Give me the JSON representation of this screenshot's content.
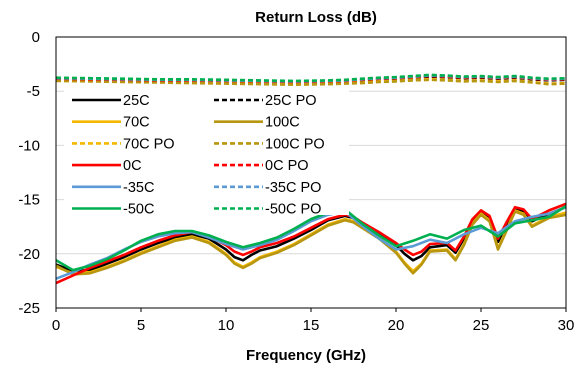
{
  "chart_data": {
    "type": "line",
    "title": "Return Loss (dB)",
    "xlabel": "Frequency  (GHz)",
    "ylabel": "",
    "xlim": [
      0,
      30
    ],
    "ylim": [
      -25,
      0
    ],
    "x_ticks": [
      0,
      5,
      10,
      15,
      20,
      25,
      30
    ],
    "y_ticks": [
      0,
      -5,
      -10,
      -15,
      -20,
      -25
    ],
    "x_tick_labels": [
      "0",
      "5",
      "10",
      "15",
      "20",
      "25",
      "30"
    ],
    "y_tick_labels": [
      "0",
      "-5",
      "-10",
      "-15",
      "-20",
      "-25"
    ],
    "grid": "horizontal",
    "legend_placement": "upper-left, inside plot, two columns",
    "series": [
      {
        "name": "25C",
        "color": "#000000",
        "dash": "solid",
        "x": [
          0,
          1,
          2,
          3,
          4,
          5,
          6,
          7,
          8,
          9,
          10,
          10.5,
          11,
          11.5,
          12,
          13,
          14,
          15,
          16,
          17,
          17.5,
          18,
          19,
          20,
          20.5,
          21,
          21.5,
          22,
          23,
          23.5,
          24,
          24.5,
          25,
          25.5,
          26,
          26.5,
          27,
          27.5,
          28,
          29,
          30
        ],
        "y": [
          -21.0,
          -21.6,
          -21.5,
          -20.9,
          -20.3,
          -19.6,
          -19.0,
          -18.5,
          -18.2,
          -18.6,
          -19.6,
          -20.3,
          -20.6,
          -20.1,
          -19.7,
          -19.3,
          -18.6,
          -17.8,
          -16.9,
          -16.5,
          -16.7,
          -17.2,
          -18.2,
          -19.2,
          -20.0,
          -20.6,
          -20.2,
          -19.4,
          -19.2,
          -19.9,
          -18.6,
          -16.9,
          -16.1,
          -16.7,
          -18.9,
          -17.3,
          -15.8,
          -16.1,
          -17.0,
          -16.3,
          -15.7
        ]
      },
      {
        "name": "25C PO",
        "color": "#000000",
        "dash": "dashed",
        "x": [
          0,
          2,
          4,
          6,
          8,
          10,
          12,
          14,
          16,
          17,
          18,
          19,
          20,
          21,
          22,
          23,
          24,
          25,
          26,
          27,
          28,
          29,
          30
        ],
        "y": [
          -3.9,
          -3.95,
          -4.0,
          -4.05,
          -4.05,
          -4.1,
          -4.15,
          -4.2,
          -4.15,
          -4.1,
          -4.0,
          -3.9,
          -3.85,
          -3.75,
          -3.65,
          -3.7,
          -3.8,
          -3.75,
          -3.85,
          -3.75,
          -3.9,
          -4.0,
          -3.95
        ]
      },
      {
        "name": "70C",
        "color": "#f5b800",
        "dash": "solid",
        "x": [
          0,
          1,
          2,
          3,
          4,
          5,
          6,
          7,
          8,
          9,
          10,
          10.5,
          11,
          11.5,
          12,
          13,
          14,
          15,
          16,
          17,
          17.5,
          18,
          19,
          20,
          20.5,
          21,
          21.5,
          22,
          23,
          23.5,
          24,
          24.5,
          25,
          25.5,
          26,
          26.5,
          27,
          27.5,
          28,
          29,
          30
        ],
        "y": [
          -21.2,
          -21.8,
          -21.7,
          -21.2,
          -20.6,
          -19.9,
          -19.3,
          -18.7,
          -18.4,
          -18.9,
          -20.0,
          -20.8,
          -21.2,
          -20.8,
          -20.3,
          -19.8,
          -19.1,
          -18.2,
          -17.3,
          -16.8,
          -17.0,
          -17.5,
          -18.5,
          -19.8,
          -20.8,
          -21.6,
          -20.9,
          -19.7,
          -19.6,
          -20.5,
          -19.1,
          -17.2,
          -16.3,
          -16.9,
          -19.5,
          -17.8,
          -16.0,
          -16.3,
          -17.4,
          -16.6,
          -16.2
        ]
      },
      {
        "name": "100C",
        "color": "#b8960f",
        "dash": "solid",
        "x": [
          0,
          1,
          2,
          3,
          4,
          5,
          6,
          7,
          8,
          9,
          10,
          10.5,
          11,
          11.5,
          12,
          13,
          14,
          15,
          16,
          17,
          17.5,
          18,
          19,
          20,
          20.5,
          21,
          21.5,
          22,
          23,
          23.5,
          24,
          24.5,
          25,
          25.5,
          26,
          26.5,
          27,
          27.5,
          28,
          29,
          30
        ],
        "y": [
          -21.1,
          -21.9,
          -21.8,
          -21.3,
          -20.7,
          -20.0,
          -19.4,
          -18.8,
          -18.5,
          -19.0,
          -20.1,
          -20.9,
          -21.3,
          -20.9,
          -20.4,
          -19.9,
          -19.2,
          -18.3,
          -17.4,
          -16.9,
          -17.1,
          -17.6,
          -18.6,
          -19.9,
          -20.9,
          -21.8,
          -21.0,
          -19.8,
          -19.7,
          -20.6,
          -19.2,
          -17.3,
          -16.4,
          -17.0,
          -19.6,
          -17.9,
          -16.1,
          -16.4,
          -17.5,
          -16.7,
          -16.4
        ]
      },
      {
        "name": "70C PO",
        "color": "#f5b800",
        "dash": "dashed",
        "x": [
          0,
          2,
          4,
          6,
          8,
          10,
          12,
          14,
          16,
          17,
          18,
          19,
          20,
          21,
          22,
          23,
          24,
          25,
          26,
          27,
          28,
          29,
          30
        ],
        "y": [
          -4.0,
          -4.05,
          -4.1,
          -4.15,
          -4.2,
          -4.25,
          -4.3,
          -4.35,
          -4.3,
          -4.25,
          -4.2,
          -4.1,
          -4.05,
          -3.95,
          -3.9,
          -3.95,
          -4.05,
          -4.0,
          -4.1,
          -4.0,
          -4.15,
          -4.3,
          -4.25
        ]
      },
      {
        "name": "100C PO",
        "color": "#b8960f",
        "dash": "dashed",
        "x": [
          0,
          2,
          4,
          6,
          8,
          10,
          12,
          14,
          16,
          17,
          18,
          19,
          20,
          21,
          22,
          23,
          24,
          25,
          26,
          27,
          28,
          29,
          30
        ],
        "y": [
          -4.05,
          -4.1,
          -4.15,
          -4.2,
          -4.25,
          -4.3,
          -4.35,
          -4.4,
          -4.35,
          -4.3,
          -4.25,
          -4.15,
          -4.1,
          -4.0,
          -3.95,
          -4.0,
          -4.1,
          -4.05,
          -4.15,
          -4.05,
          -4.2,
          -4.35,
          -4.3
        ]
      },
      {
        "name": "0C",
        "color": "#ff0000",
        "dash": "solid",
        "x": [
          0,
          1,
          2,
          3,
          4,
          5,
          6,
          7,
          8,
          9,
          10,
          10.5,
          11,
          11.5,
          12,
          13,
          14,
          15,
          16,
          17,
          17.5,
          18,
          19,
          20,
          20.5,
          21,
          21.5,
          22,
          23,
          23.5,
          24,
          24.5,
          25,
          25.5,
          26,
          26.5,
          27,
          27.5,
          28,
          29,
          30
        ],
        "y": [
          -22.7,
          -22.0,
          -21.3,
          -20.7,
          -20.1,
          -19.4,
          -18.8,
          -18.3,
          -18.0,
          -18.4,
          -19.2,
          -19.8,
          -20.1,
          -19.8,
          -19.4,
          -19.0,
          -18.4,
          -17.6,
          -16.8,
          -16.4,
          -16.6,
          -17.1,
          -18.0,
          -19.0,
          -19.6,
          -20.1,
          -19.8,
          -19.1,
          -19.0,
          -19.7,
          -18.4,
          -16.8,
          -16.0,
          -16.5,
          -18.6,
          -17.1,
          -15.7,
          -15.9,
          -16.8,
          -16.0,
          -15.4
        ]
      },
      {
        "name": "0C PO",
        "color": "#ff0000",
        "dash": "dashed",
        "x": [
          0,
          2,
          4,
          6,
          8,
          10,
          12,
          14,
          16,
          17,
          18,
          19,
          20,
          21,
          22,
          23,
          24,
          25,
          26,
          27,
          28,
          29,
          30
        ],
        "y": [
          -3.85,
          -3.9,
          -3.95,
          -4.0,
          -4.0,
          -4.05,
          -4.1,
          -4.15,
          -4.1,
          -4.05,
          -3.95,
          -3.85,
          -3.8,
          -3.7,
          -3.6,
          -3.65,
          -3.75,
          -3.7,
          -3.8,
          -3.7,
          -3.85,
          -3.95,
          -3.9
        ]
      },
      {
        "name": "-35C",
        "color": "#5b9bd5",
        "dash": "solid",
        "x": [
          0,
          1,
          2,
          3,
          4,
          5,
          6,
          7,
          8,
          9,
          10,
          11,
          12,
          13,
          14,
          15,
          16,
          17,
          18,
          19,
          20,
          21,
          22,
          23,
          24,
          25,
          26,
          27,
          28,
          29,
          30
        ],
        "y": [
          -22.3,
          -21.7,
          -21.0,
          -20.4,
          -19.6,
          -18.9,
          -18.4,
          -18.1,
          -18.0,
          -18.5,
          -19.1,
          -19.6,
          -19.2,
          -18.7,
          -17.9,
          -17.0,
          -16.4,
          -16.1,
          -17.4,
          -18.6,
          -19.6,
          -19.3,
          -18.7,
          -19.0,
          -18.2,
          -17.6,
          -18.1,
          -17.0,
          -16.6,
          -16.3,
          -15.7
        ]
      },
      {
        "name": "-35C PO",
        "color": "#5b9bd5",
        "dash": "dashed",
        "x": [
          0,
          2,
          4,
          6,
          8,
          10,
          12,
          14,
          16,
          17,
          18,
          19,
          20,
          21,
          22,
          23,
          24,
          25,
          26,
          27,
          28,
          29,
          30
        ],
        "y": [
          -3.8,
          -3.85,
          -3.9,
          -3.95,
          -3.95,
          -4.0,
          -4.05,
          -4.1,
          -4.05,
          -4.0,
          -3.9,
          -3.8,
          -3.75,
          -3.65,
          -3.55,
          -3.6,
          -3.7,
          -3.65,
          -3.75,
          -3.65,
          -3.8,
          -3.9,
          -3.85
        ]
      },
      {
        "name": "-50C",
        "color": "#00b050",
        "dash": "solid",
        "x": [
          0,
          1,
          2,
          3,
          4,
          5,
          6,
          7,
          8,
          9,
          10,
          11,
          12,
          13,
          14,
          15,
          16,
          17,
          18,
          19,
          20,
          21,
          22,
          23,
          24,
          25,
          26,
          27,
          28,
          29,
          30
        ],
        "y": [
          -20.6,
          -21.5,
          -21.1,
          -20.5,
          -19.7,
          -18.8,
          -18.2,
          -17.9,
          -17.9,
          -18.3,
          -18.9,
          -19.4,
          -19.0,
          -18.5,
          -17.7,
          -16.8,
          -16.2,
          -15.9,
          -17.2,
          -18.3,
          -19.3,
          -18.8,
          -18.2,
          -18.6,
          -17.8,
          -17.4,
          -18.4,
          -17.2,
          -16.9,
          -16.6,
          -15.6
        ]
      },
      {
        "name": "-50C PO",
        "color": "#00b050",
        "dash": "dashed",
        "x": [
          0,
          2,
          4,
          6,
          8,
          10,
          12,
          14,
          16,
          17,
          18,
          19,
          20,
          21,
          22,
          23,
          24,
          25,
          26,
          27,
          28,
          29,
          30
        ],
        "y": [
          -3.75,
          -3.8,
          -3.85,
          -3.9,
          -3.9,
          -3.95,
          -4.0,
          -4.05,
          -4.0,
          -3.95,
          -3.85,
          -3.75,
          -3.7,
          -3.6,
          -3.5,
          -3.55,
          -3.65,
          -3.6,
          -3.7,
          -3.6,
          -3.75,
          -3.85,
          -3.8
        ]
      }
    ]
  }
}
